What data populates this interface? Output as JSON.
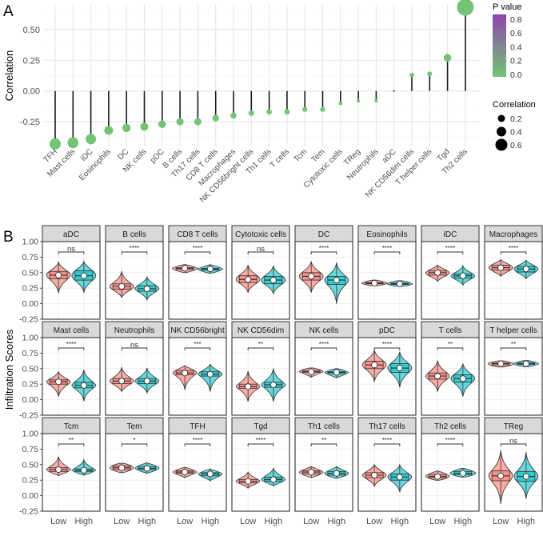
{
  "panel_labels": {
    "a": "A",
    "b": "B"
  },
  "chart_data": [
    {
      "type": "scatter",
      "subtype": "lollipop",
      "title": "",
      "xlabel": "",
      "ylabel": "Correlation",
      "ylim": [
        -0.45,
        0.7
      ],
      "yticks": [
        -0.25,
        0.0,
        0.25,
        0.5
      ],
      "ytick_labels": [
        "-0.25",
        "0.00",
        "0.25",
        "0.50"
      ],
      "grid": true,
      "categories": [
        "TFH",
        "Mast cells",
        "iDC",
        "Eosinophils",
        "DC",
        "NK cells",
        "pDC",
        "B cells",
        "Th17 cells",
        "CD8 T cells",
        "Macrophages",
        "NK CD56bright cells",
        "Th1 cells",
        "T cells",
        "Tcm",
        "Tem",
        "Cytotoxic cells",
        "TReg",
        "Neutrophils",
        "aDC",
        "NK CD56dim cells",
        "T helper cells",
        "Tgd",
        "Th2 cells"
      ],
      "values": [
        -0.43,
        -0.42,
        -0.39,
        -0.32,
        -0.3,
        -0.29,
        -0.27,
        -0.25,
        -0.25,
        -0.22,
        -0.2,
        -0.18,
        -0.17,
        -0.17,
        -0.15,
        -0.15,
        -0.1,
        -0.08,
        -0.08,
        0.0,
        0.13,
        0.14,
        0.27,
        0.68
      ],
      "p_values": [
        0,
        0,
        0,
        0,
        0,
        0,
        0,
        0,
        0,
        0,
        0,
        0,
        0,
        0,
        0,
        0,
        0,
        0,
        0,
        0.9,
        0,
        0,
        0,
        0
      ],
      "legend": {
        "color": {
          "title": "P value",
          "ticks": [
            "0.8",
            "0.6",
            "0.4",
            "0.2",
            "0.0"
          ],
          "low_color": "#74c476",
          "high_color": "#8e44ad"
        },
        "size": {
          "title": "Correlation",
          "ticks": [
            "0.2",
            "0.4",
            "0.6"
          ]
        },
        "placement": "right"
      }
    },
    {
      "type": "violin",
      "ylabel": "Infiltration Scores",
      "ylim": [
        -0.25,
        1.0
      ],
      "yticks": [
        -0.25,
        0.0,
        0.25,
        0.5,
        0.75,
        1.0
      ],
      "ytick_labels": [
        "-0.25",
        "0.00",
        "0.25",
        "0.50",
        "0.75",
        "1.00"
      ],
      "groups": [
        "Low",
        "High"
      ],
      "group_colors": {
        "Low": "#f8766d",
        "High": "#00bfc4"
      },
      "facet_rows": 3,
      "facet_cols": 8,
      "facets": [
        {
          "name": "aDC",
          "sig": "ns",
          "low": [
            0.17,
            0.4,
            0.46,
            0.52,
            0.67
          ],
          "high": [
            0.18,
            0.38,
            0.45,
            0.53,
            0.68
          ]
        },
        {
          "name": "B cells",
          "sig": "****",
          "low": [
            0.1,
            0.23,
            0.28,
            0.32,
            0.52
          ],
          "high": [
            0.06,
            0.2,
            0.24,
            0.29,
            0.43
          ]
        },
        {
          "name": "CD8 T cells",
          "sig": "****",
          "low": [
            0.5,
            0.55,
            0.57,
            0.58,
            0.63
          ],
          "high": [
            0.49,
            0.54,
            0.56,
            0.57,
            0.63
          ]
        },
        {
          "name": "Cytotoxic cells",
          "sig": "ns",
          "low": [
            0.18,
            0.34,
            0.39,
            0.45,
            0.62
          ],
          "high": [
            0.16,
            0.32,
            0.38,
            0.44,
            0.61
          ]
        },
        {
          "name": "DC",
          "sig": "****",
          "low": [
            0.18,
            0.38,
            0.44,
            0.5,
            0.68
          ],
          "high": [
            0.0,
            0.31,
            0.38,
            0.44,
            0.66
          ]
        },
        {
          "name": "Eosinophils",
          "sig": "****",
          "low": [
            0.3,
            0.32,
            0.33,
            0.34,
            0.38
          ],
          "high": [
            0.29,
            0.31,
            0.32,
            0.33,
            0.37
          ]
        },
        {
          "name": "iDC",
          "sig": "****",
          "low": [
            0.36,
            0.46,
            0.5,
            0.53,
            0.62
          ],
          "high": [
            0.3,
            0.41,
            0.45,
            0.48,
            0.61
          ]
        },
        {
          "name": "Macrophages",
          "sig": "****",
          "low": [
            0.44,
            0.54,
            0.58,
            0.62,
            0.71
          ],
          "high": [
            0.4,
            0.51,
            0.56,
            0.6,
            0.7
          ]
        },
        {
          "name": "Mast cells",
          "sig": "****",
          "low": [
            0.05,
            0.25,
            0.29,
            0.32,
            0.45
          ],
          "high": [
            -0.02,
            0.19,
            0.23,
            0.28,
            0.48
          ]
        },
        {
          "name": "Neutrophils",
          "sig": "ns",
          "low": [
            0.13,
            0.26,
            0.3,
            0.34,
            0.52
          ],
          "high": [
            0.11,
            0.26,
            0.3,
            0.34,
            0.51
          ]
        },
        {
          "name": "NK CD56bright",
          "sig": "***",
          "low": [
            0.16,
            0.4,
            0.43,
            0.47,
            0.55
          ],
          "high": [
            0.13,
            0.38,
            0.41,
            0.45,
            0.57
          ]
        },
        {
          "name": "NK CD56dim",
          "sig": "**",
          "low": [
            -0.03,
            0.18,
            0.21,
            0.25,
            0.46
          ],
          "high": [
            -0.03,
            0.2,
            0.24,
            0.28,
            0.5
          ]
        },
        {
          "name": "NK cells",
          "sig": "****",
          "low": [
            0.36,
            0.44,
            0.45,
            0.47,
            0.51
          ],
          "high": [
            0.35,
            0.42,
            0.44,
            0.45,
            0.5
          ]
        },
        {
          "name": "pDC",
          "sig": "****",
          "low": [
            0.29,
            0.5,
            0.56,
            0.62,
            0.8
          ],
          "high": [
            0.2,
            0.44,
            0.51,
            0.58,
            0.77
          ]
        },
        {
          "name": "T cells",
          "sig": "**",
          "low": [
            0.13,
            0.33,
            0.38,
            0.43,
            0.63
          ],
          "high": [
            0.05,
            0.28,
            0.34,
            0.4,
            0.58
          ]
        },
        {
          "name": "T helper cells",
          "sig": "**",
          "low": [
            0.53,
            0.56,
            0.58,
            0.59,
            0.62
          ],
          "high": [
            0.53,
            0.57,
            0.58,
            0.59,
            0.63
          ]
        },
        {
          "name": "Tcm",
          "sig": "**",
          "low": [
            0.32,
            0.39,
            0.42,
            0.45,
            0.63
          ],
          "high": [
            0.33,
            0.39,
            0.41,
            0.43,
            0.58
          ]
        },
        {
          "name": "Tem",
          "sig": "*",
          "low": [
            0.37,
            0.42,
            0.45,
            0.48,
            0.52
          ],
          "high": [
            0.36,
            0.42,
            0.44,
            0.47,
            0.53
          ]
        },
        {
          "name": "TFH",
          "sig": "****",
          "low": [
            0.29,
            0.36,
            0.38,
            0.4,
            0.46
          ],
          "high": [
            0.24,
            0.32,
            0.35,
            0.37,
            0.43
          ]
        },
        {
          "name": "Tgd",
          "sig": "****",
          "low": [
            0.12,
            0.21,
            0.23,
            0.26,
            0.38
          ],
          "high": [
            0.16,
            0.23,
            0.26,
            0.3,
            0.44
          ]
        },
        {
          "name": "Th1 cells",
          "sig": "**",
          "low": [
            0.29,
            0.35,
            0.38,
            0.4,
            0.47
          ],
          "high": [
            0.28,
            0.33,
            0.36,
            0.39,
            0.47
          ]
        },
        {
          "name": "Th17 cells",
          "sig": "****",
          "low": [
            0.15,
            0.29,
            0.33,
            0.37,
            0.5
          ],
          "high": [
            0.06,
            0.25,
            0.3,
            0.35,
            0.5
          ]
        },
        {
          "name": "Th2 cells",
          "sig": "****",
          "low": [
            0.25,
            0.29,
            0.31,
            0.34,
            0.4
          ],
          "high": [
            0.3,
            0.34,
            0.36,
            0.39,
            0.44
          ]
        },
        {
          "name": "TReg",
          "sig": "ns",
          "low": [
            -0.13,
            0.24,
            0.32,
            0.4,
            0.73
          ],
          "high": [
            -0.05,
            0.23,
            0.31,
            0.39,
            0.7
          ]
        }
      ]
    }
  ]
}
